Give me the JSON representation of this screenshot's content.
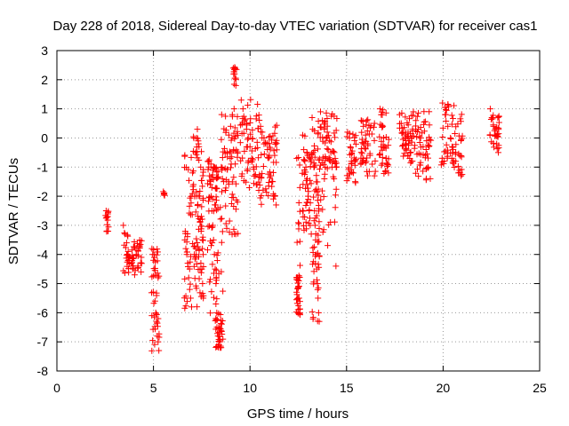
{
  "chart_data": {
    "type": "scatter",
    "title": "Day 228 of 2018, Sidereal Day-to-day VTEC variation (SDTVAR) for receiver cas1",
    "xlabel": "GPS time / hours",
    "ylabel": "SDTVAR / TECUs",
    "xlim": [
      0,
      25
    ],
    "ylim": [
      -8,
      3
    ],
    "x_ticks": [
      0,
      5,
      10,
      15,
      20,
      25
    ],
    "y_ticks": [
      -8,
      -7,
      -6,
      -5,
      -4,
      -3,
      -2,
      -1,
      0,
      1,
      2,
      3
    ],
    "grid": true,
    "marker": "+",
    "marker_color": "#ff0000",
    "series": [
      {
        "name": "SDTVAR",
        "clusters": [
          {
            "x_range": [
              2.5,
              2.7
            ],
            "y_values": [
              -2.5,
              -3.2
            ]
          },
          {
            "x_range": [
              3.4,
              4.4
            ],
            "y_values": [
              -3.0,
              -3.3,
              -3.6,
              -3.9,
              -4.1,
              -4.3,
              -4.5,
              -4.7,
              -4.0,
              -4.4,
              -3.7,
              -4.6
            ]
          },
          {
            "x_range": [
              4.9,
              5.3
            ],
            "y_values": [
              -3.8,
              -4.0,
              -4.2,
              -4.1,
              -5.6,
              -6.0,
              -6.3,
              -6.8,
              -7.0,
              -7.3
            ]
          },
          {
            "x_range": [
              5.5,
              5.6
            ],
            "y_values": [
              -1.9
            ]
          },
          {
            "x_range": [
              6.6,
              7.3
            ],
            "y_values": [
              -3.5,
              -3.8,
              -4.0,
              -4.3,
              -4.8,
              -5.2,
              -5.5,
              -5.8,
              -1.2,
              -1.6,
              -2.0,
              -0.5,
              0.0,
              0.3
            ]
          },
          {
            "x_range": [
              7.3,
              7.6
            ],
            "y_values": [
              -0.1,
              -0.3,
              -2.0,
              -2.8,
              -3.2,
              -4.5,
              -5.0,
              -5.5
            ]
          },
          {
            "x_range": [
              7.8,
              8.3
            ],
            "y_values": [
              -0.8,
              -1.0,
              -1.3,
              -1.6,
              -2.0,
              -2.5,
              -3.0,
              -3.5,
              -4.0,
              -4.5,
              -5.0,
              -6.0
            ]
          },
          {
            "x_range": [
              8.2,
              8.6
            ],
            "y_values": [
              -6.2,
              -6.5,
              -6.8,
              -7.0,
              -7.2,
              -1.0,
              -1.4
            ]
          },
          {
            "x_range": [
              8.5,
              9.4
            ],
            "y_values": [
              -1.1,
              -1.5,
              -1.8,
              -0.5,
              0.1,
              0.4,
              0.8,
              1.0,
              -3.3,
              -2.2
            ]
          },
          {
            "x_range": [
              9.1,
              9.3
            ],
            "y_values": [
              2.4,
              2.2,
              1.8
            ]
          },
          {
            "x_range": [
              9.5,
              10.5
            ],
            "y_values": [
              1.3,
              1.0,
              0.6,
              0.3,
              0.0,
              -0.3,
              -0.7,
              -1.0,
              -1.3,
              -1.6,
              -1.8
            ]
          },
          {
            "x_range": [
              10.5,
              11.4
            ],
            "y_values": [
              0.4,
              0.2,
              0.0,
              -0.2,
              -0.4,
              -0.6,
              -1.3,
              -1.5,
              -2.0,
              -2.3
            ]
          },
          {
            "x_range": [
              12.4,
              12.6
            ],
            "y_values": [
              -0.7,
              -4.8,
              -5.1,
              -5.5,
              -6.0
            ]
          },
          {
            "x_range": [
              12.7,
              13.2
            ],
            "y_values": [
              0.1,
              -0.4,
              -0.8,
              -1.0,
              -1.6,
              -2.0,
              -2.5,
              -3.0,
              -3.3
            ]
          },
          {
            "x_range": [
              13.2,
              13.6
            ],
            "y_values": [
              0.7,
              0.3,
              -0.5,
              -1.0,
              -2.5,
              -3.0,
              -3.5,
              -4.0,
              -4.5,
              -5.0,
              -5.5,
              -6.0,
              -6.3
            ]
          },
          {
            "x_range": [
              13.6,
              14.5
            ],
            "y_values": [
              0.9,
              0.6,
              0.3,
              0.0,
              -0.4,
              -0.8,
              -1.0,
              -1.4,
              -4.4
            ]
          },
          {
            "x_range": [
              15.0,
              15.5
            ],
            "y_values": [
              0.2,
              0.0,
              -0.8,
              -1.2,
              -1.5
            ]
          },
          {
            "x_range": [
              15.7,
              16.5
            ],
            "y_values": [
              0.6,
              0.4,
              0.1,
              -0.2,
              -0.6,
              -0.9,
              -1.3
            ]
          },
          {
            "x_range": [
              16.7,
              17.2
            ],
            "y_values": [
              1.0,
              0.8,
              0.4,
              0.0,
              -0.3,
              -0.7,
              -0.9,
              -1.2
            ]
          },
          {
            "x_range": [
              17.7,
              18.4
            ],
            "y_values": [
              0.8,
              0.5,
              0.2,
              0.0,
              -0.2,
              -0.6,
              -0.7,
              -0.8
            ]
          },
          {
            "x_range": [
              18.4,
              19.4
            ],
            "y_values": [
              0.9,
              0.6,
              0.3,
              0.0,
              -0.3,
              -0.6,
              -1.0,
              -1.4
            ]
          },
          {
            "x_range": [
              19.9,
              21.0
            ],
            "y_values": [
              1.2,
              0.8,
              0.4,
              0.0,
              -0.4,
              -0.8,
              -1.2,
              -1.3
            ]
          },
          {
            "x_range": [
              22.4,
              22.9
            ],
            "y_values": [
              1.0,
              0.7,
              0.4,
              0.1,
              -0.2,
              -0.5
            ]
          }
        ]
      }
    ]
  }
}
